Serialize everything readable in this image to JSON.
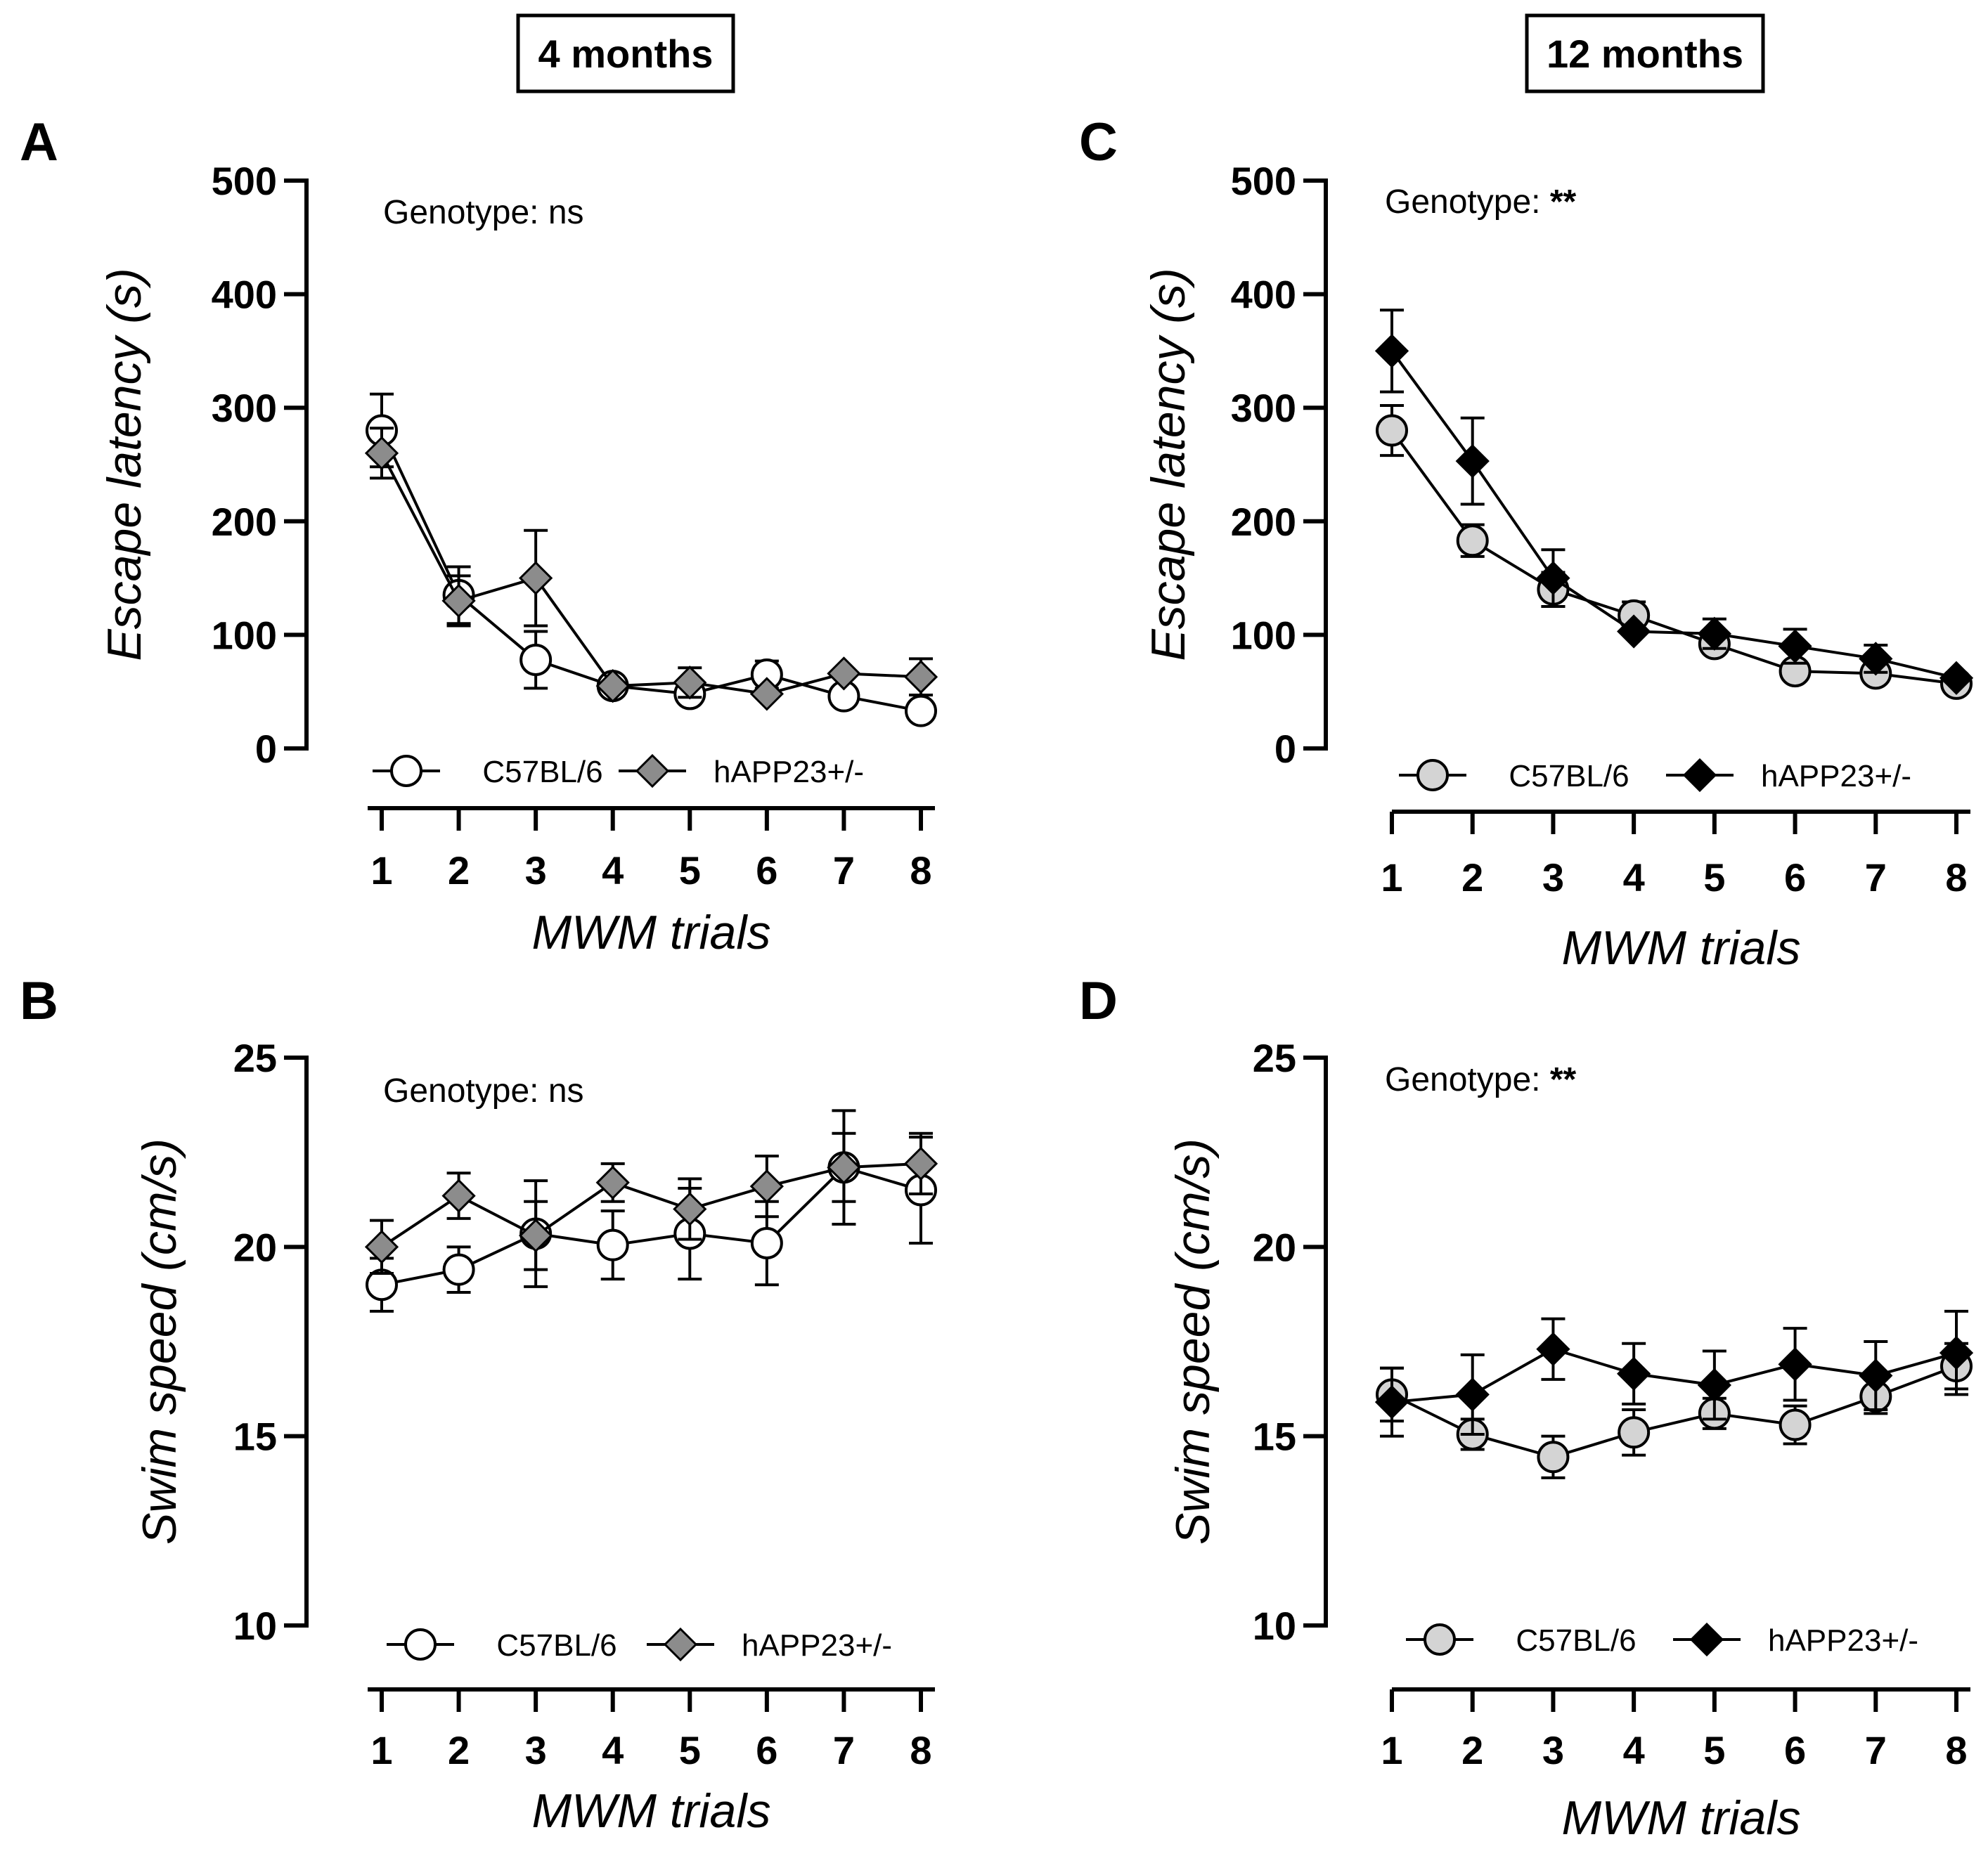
{
  "age_titles": [
    "4 months",
    "12 months"
  ],
  "series_names": [
    "C57BL/6",
    "hAPP23+/-"
  ],
  "colors": {
    "axis": "#000000",
    "c57_fill_4mo": "#ffffff",
    "happ_fill_4mo": "#8c8c8c",
    "c57_fill_12mo": "#d4d4d4",
    "happ_fill_12mo": "#000000"
  },
  "chart_data": [
    {
      "panel": "A",
      "type": "line",
      "age": "4 months",
      "xlabel": "MWM trials",
      "ylabel": "Escape latency (s)",
      "x": [
        1,
        2,
        3,
        4,
        5,
        6,
        7,
        8
      ],
      "ylim": [
        0,
        500
      ],
      "yticks": [
        0,
        100,
        200,
        300,
        400,
        500
      ],
      "annotation": {
        "label": "Genotype:",
        "value": "ns"
      },
      "series": [
        {
          "name": "C57BL/6",
          "marker": "circle",
          "values": [
            280,
            135,
            78,
            55,
            48,
            65,
            46,
            33
          ],
          "errors": [
            32,
            25,
            25,
            0,
            0,
            12,
            0,
            0
          ]
        },
        {
          "name": "hAPP23+/-",
          "marker": "diamond",
          "values": [
            260,
            130,
            150,
            55,
            58,
            48,
            66,
            63
          ],
          "errors": [
            22,
            22,
            42,
            0,
            13,
            0,
            0,
            16
          ]
        }
      ]
    },
    {
      "panel": "B",
      "type": "line",
      "age": "4 months",
      "xlabel": "MWM trials",
      "ylabel": "Swim speed (cm/s)",
      "x": [
        1,
        2,
        3,
        4,
        5,
        6,
        7,
        8
      ],
      "ylim": [
        10,
        25
      ],
      "yticks": [
        10,
        15,
        20,
        25
      ],
      "annotation": {
        "label": "Genotype:",
        "value": "ns"
      },
      "series": [
        {
          "name": "C57BL/6",
          "marker": "circle",
          "values": [
            19.0,
            19.4,
            20.35,
            20.05,
            20.35,
            20.1,
            22.1,
            21.5
          ],
          "errors": [
            0.7,
            0.6,
            1.4,
            0.9,
            1.2,
            1.1,
            1.5,
            1.4
          ]
        },
        {
          "name": "hAPP23+/-",
          "marker": "diamond",
          "values": [
            20.0,
            21.35,
            20.3,
            21.7,
            21.0,
            21.6,
            22.1,
            22.2
          ],
          "errors": [
            0.7,
            0.6,
            0.9,
            0.5,
            0.8,
            0.8,
            0.9,
            0.8
          ]
        }
      ]
    },
    {
      "panel": "C",
      "type": "line",
      "age": "12 months",
      "xlabel": "MWM trials",
      "ylabel": "Escape latency (s)",
      "x": [
        1,
        2,
        3,
        4,
        5,
        6,
        7,
        8
      ],
      "ylim": [
        0,
        500
      ],
      "yticks": [
        0,
        100,
        200,
        300,
        400,
        500
      ],
      "annotation": {
        "label": "Genotype:",
        "value": "**"
      },
      "series": [
        {
          "name": "C57BL/6",
          "marker": "circle",
          "values": [
            280,
            183,
            140,
            117,
            92,
            68,
            66,
            57
          ],
          "errors": [
            22,
            14,
            15,
            12,
            0,
            0,
            0,
            0
          ]
        },
        {
          "name": "hAPP23+/-",
          "marker": "diamond",
          "values": [
            350,
            253,
            150,
            103,
            101,
            90,
            79,
            62
          ],
          "errors": [
            36,
            38,
            25,
            0,
            13,
            15,
            12,
            0
          ]
        }
      ]
    },
    {
      "panel": "D",
      "type": "line",
      "age": "12 months",
      "xlabel": "MWM trials",
      "ylabel": "Swim speed (cm/s)",
      "x": [
        1,
        2,
        3,
        4,
        5,
        6,
        7,
        8
      ],
      "ylim": [
        10,
        25
      ],
      "yticks": [
        10,
        15,
        20,
        25
      ],
      "annotation": {
        "label": "Genotype:",
        "value": "**"
      },
      "series": [
        {
          "name": "C57BL/6",
          "marker": "circle",
          "values": [
            16.1,
            15.05,
            14.45,
            15.1,
            15.6,
            15.3,
            16.05,
            16.85
          ],
          "errors": [
            0.7,
            0.4,
            0.55,
            0.6,
            0.4,
            0.5,
            0.45,
            0.6
          ]
        },
        {
          "name": "hAPP23+/-",
          "marker": "diamond",
          "values": [
            15.9,
            16.1,
            17.3,
            16.65,
            16.35,
            16.9,
            16.6,
            17.2
          ],
          "errors": [
            0.9,
            1.05,
            0.8,
            0.8,
            0.9,
            0.95,
            0.9,
            1.1
          ]
        }
      ]
    }
  ]
}
